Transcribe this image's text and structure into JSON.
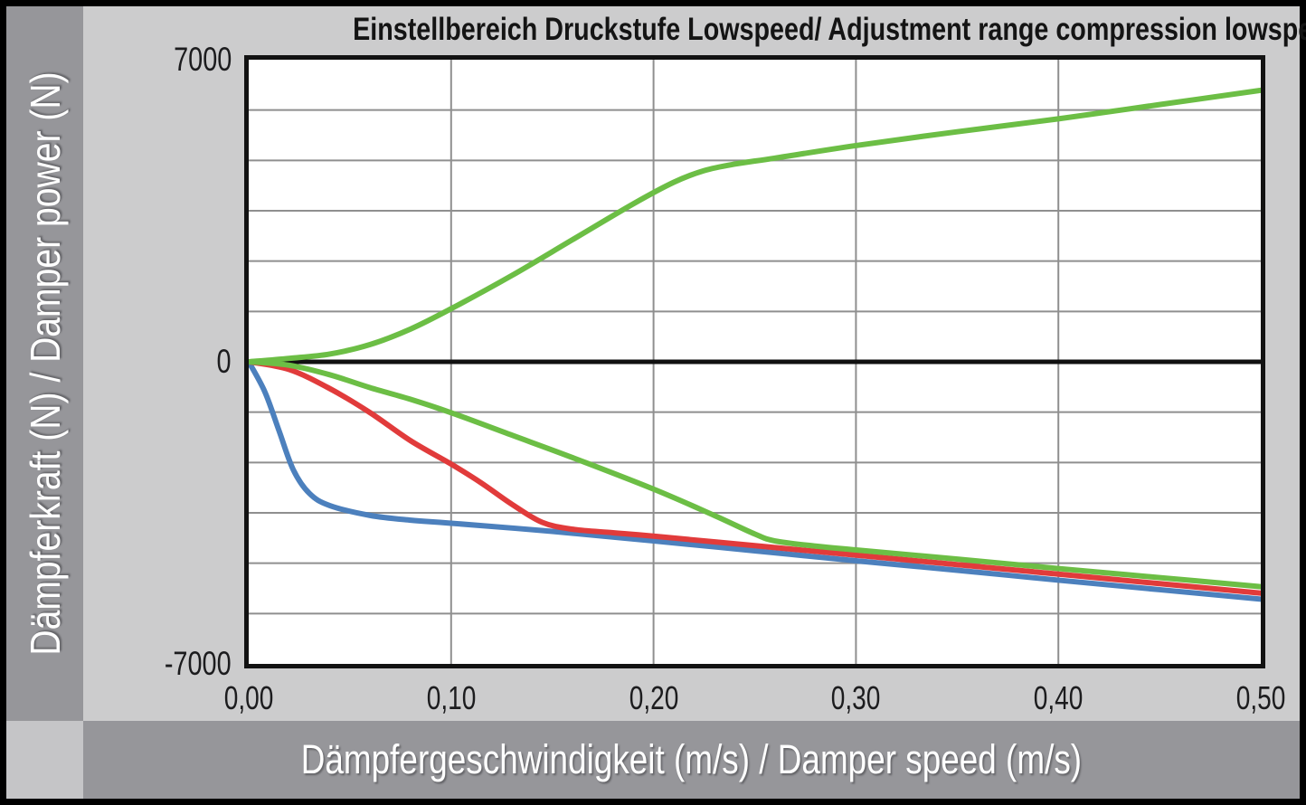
{
  "title": "Einstellbereich Druckstufe Lowspeed/ Adjustment range compression lowspeed",
  "y_axis": {
    "label": "Dämpferkraft (N) / Damper power (N)",
    "ticks": [
      {
        "label": "7000",
        "value": 7000
      },
      {
        "label": "0",
        "value": 0
      },
      {
        "label": "-7000",
        "value": -7000
      }
    ]
  },
  "x_axis": {
    "label": "Dämpfergeschwindigkeit (m/s) / Damper speed (m/s)",
    "ticks": [
      {
        "label": "0,00",
        "value": 0.0
      },
      {
        "label": "0,10",
        "value": 0.1
      },
      {
        "label": "0,20",
        "value": 0.2
      },
      {
        "label": "0,30",
        "value": 0.3
      },
      {
        "label": "0,40",
        "value": 0.4
      },
      {
        "label": "0,50",
        "value": 0.5
      }
    ]
  },
  "colors": {
    "frame": "#000000",
    "band_gray": "#96969a",
    "chart_surround_gray": "#cccccd",
    "corner_gray": "#c5c5c7",
    "plot_background": "#ffffff",
    "gridline": "#8f8f8f",
    "zero_line": "#111111",
    "green": "#6cbe45",
    "red": "#e13b3b",
    "blue": "#4c80bd",
    "tick_text": "#1c1c1e",
    "title_text": "#141414",
    "axis_label_text": "#ffffff"
  },
  "chart_data": {
    "type": "line",
    "title": "Einstellbereich Druckstufe Lowspeed/ Adjustment range compression lowspeed",
    "xlabel": "Dämpfergeschwindigkeit (m/s) / Damper speed (m/s)",
    "ylabel": "Dämpferkraft (N) / Damper power (N)",
    "xlim": [
      0,
      0.5
    ],
    "ylim": [
      -7000,
      7000
    ],
    "x_tick_values": [
      0.0,
      0.1,
      0.2,
      0.3,
      0.4,
      0.5
    ],
    "y_tick_values": [
      7000,
      0,
      -7000
    ],
    "grid": {
      "visible": true,
      "x_divisions": 5,
      "y_divisions": 12
    },
    "legend": "none",
    "series": [
      {
        "name": "blue-line",
        "color": "#4c80bd",
        "points": [
          [
            0,
            0
          ],
          [
            0.008,
            -700
          ],
          [
            0.015,
            -1600
          ],
          [
            0.022,
            -2500
          ],
          [
            0.03,
            -3050
          ],
          [
            0.04,
            -3330
          ],
          [
            0.06,
            -3560
          ],
          [
            0.08,
            -3670
          ],
          [
            0.1,
            -3740
          ],
          [
            0.15,
            -3930
          ],
          [
            0.2,
            -4150
          ],
          [
            0.25,
            -4380
          ],
          [
            0.3,
            -4610
          ],
          [
            0.35,
            -4830
          ],
          [
            0.4,
            -5060
          ],
          [
            0.45,
            -5280
          ],
          [
            0.5,
            -5500
          ]
        ]
      },
      {
        "name": "red-line",
        "color": "#e13b3b",
        "points": [
          [
            0,
            0
          ],
          [
            0.02,
            -180
          ],
          [
            0.04,
            -620
          ],
          [
            0.06,
            -1180
          ],
          [
            0.08,
            -1830
          ],
          [
            0.1,
            -2370
          ],
          [
            0.115,
            -2810
          ],
          [
            0.13,
            -3300
          ],
          [
            0.145,
            -3720
          ],
          [
            0.16,
            -3880
          ],
          [
            0.18,
            -3960
          ],
          [
            0.2,
            -4040
          ],
          [
            0.25,
            -4260
          ],
          [
            0.3,
            -4480
          ],
          [
            0.35,
            -4700
          ],
          [
            0.4,
            -4920
          ],
          [
            0.45,
            -5140
          ],
          [
            0.5,
            -5360
          ]
        ]
      },
      {
        "name": "green-lower-line",
        "color": "#6cbe45",
        "points": [
          [
            0,
            0
          ],
          [
            0.02,
            -80
          ],
          [
            0.04,
            -300
          ],
          [
            0.06,
            -600
          ],
          [
            0.08,
            -870
          ],
          [
            0.1,
            -1180
          ],
          [
            0.13,
            -1700
          ],
          [
            0.16,
            -2220
          ],
          [
            0.2,
            -2950
          ],
          [
            0.23,
            -3560
          ],
          [
            0.25,
            -3990
          ],
          [
            0.26,
            -4150
          ],
          [
            0.28,
            -4270
          ],
          [
            0.3,
            -4360
          ],
          [
            0.35,
            -4570
          ],
          [
            0.4,
            -4790
          ],
          [
            0.45,
            -5000
          ],
          [
            0.5,
            -5210
          ]
        ]
      },
      {
        "name": "green-upper-line",
        "color": "#6cbe45",
        "points": [
          [
            0,
            0
          ],
          [
            0.02,
            80
          ],
          [
            0.04,
            180
          ],
          [
            0.06,
            400
          ],
          [
            0.08,
            760
          ],
          [
            0.1,
            1230
          ],
          [
            0.13,
            2000
          ],
          [
            0.16,
            2830
          ],
          [
            0.19,
            3660
          ],
          [
            0.21,
            4160
          ],
          [
            0.225,
            4430
          ],
          [
            0.24,
            4580
          ],
          [
            0.26,
            4720
          ],
          [
            0.3,
            5010
          ],
          [
            0.35,
            5330
          ],
          [
            0.4,
            5630
          ],
          [
            0.45,
            5960
          ],
          [
            0.5,
            6290
          ]
        ]
      }
    ]
  }
}
